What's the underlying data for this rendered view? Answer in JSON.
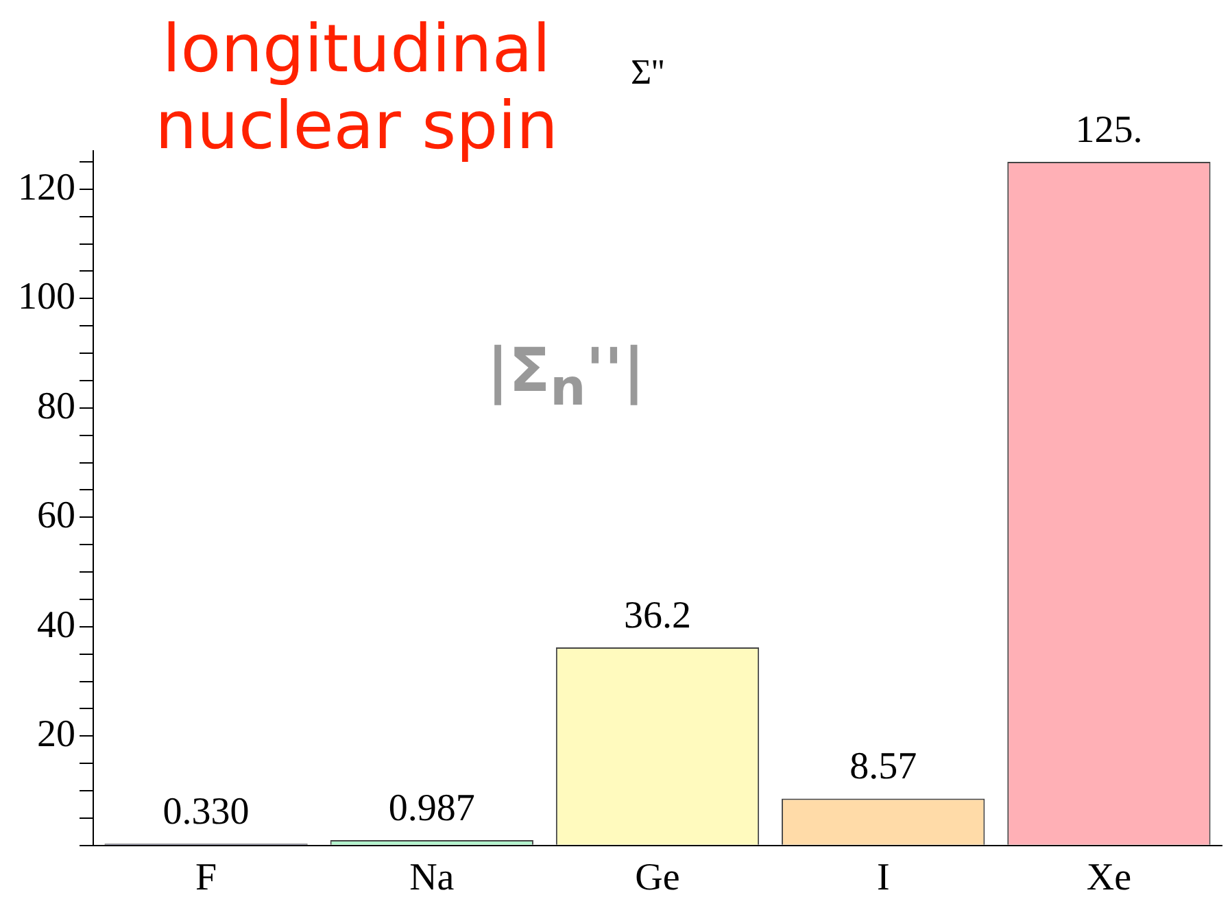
{
  "chart_data": {
    "type": "bar",
    "title": "longitudinal nuclear spin",
    "annotations": [
      "Σ''",
      "|Σ$_{n}$''|"
    ],
    "categories": [
      "F",
      "Na",
      "Ge",
      "I",
      "Xe"
    ],
    "values": [
      0.33,
      0.987,
      36.2,
      8.57,
      125
    ],
    "value_labels": [
      "0.330",
      "0.987",
      "36.2",
      "8.57",
      "125."
    ],
    "colors": [
      "#5c5c80",
      "#b2f2cc",
      "#fffabe",
      "#ffdba8",
      "#ffb0b6"
    ],
    "ylim": [
      0,
      127
    ],
    "yticks": [
      {
        "value": 0,
        "label": null
      },
      {
        "value": 5,
        "label": null
      },
      {
        "value": 10,
        "label": null
      },
      {
        "value": 15,
        "label": null
      },
      20,
      {
        "value": 25,
        "label": null
      },
      {
        "value": 30,
        "label": null
      },
      {
        "value": 35,
        "label": null
      },
      40,
      {
        "value": 45,
        "label": null
      },
      {
        "value": 50,
        "label": null
      },
      {
        "value": 55,
        "label": null
      },
      60,
      {
        "value": 65,
        "label": null
      },
      {
        "value": 70,
        "label": null
      },
      {
        "value": 75,
        "label": null
      },
      80,
      {
        "value": 85,
        "label": null
      },
      {
        "value": 90,
        "label": null
      },
      {
        "value": 95,
        "label": null
      },
      100,
      {
        "value": 105,
        "label": null
      },
      {
        "value": 110,
        "label": null
      },
      {
        "value": 115,
        "label": null
      },
      120,
      {
        "value": 125,
        "label": null
      }
    ],
    "grid": false,
    "legend": false
  }
}
